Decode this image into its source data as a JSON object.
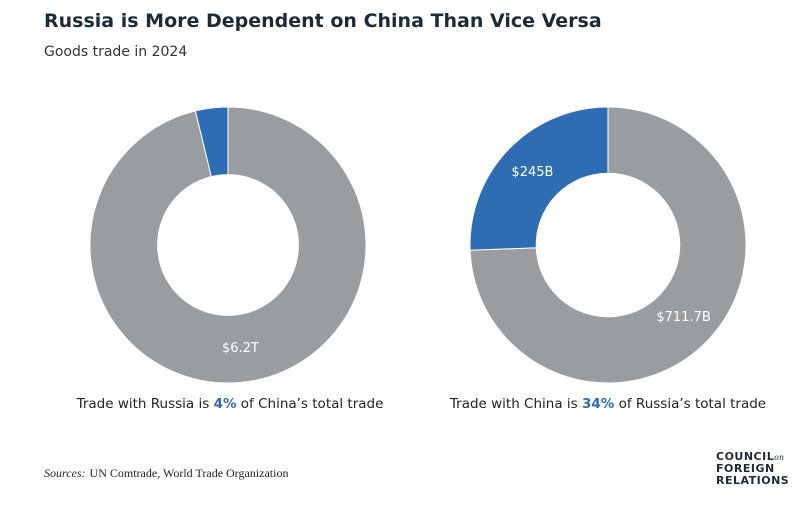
{
  "header": {
    "title": "Russia is More Dependent on China Than Vice Versa",
    "subtitle": "Goods trade in 2024"
  },
  "chart_data": [
    {
      "type": "pie",
      "hole": 0.51,
      "values": [
        6200,
        245
      ],
      "value_labels": [
        "$6.2T",
        null
      ],
      "colors": [
        "#9a9d9f",
        "#2e6db4"
      ],
      "caption": [
        "Trade with Russia is",
        "4%",
        "of China’s total trade"
      ]
    },
    {
      "type": "pie",
      "hole": 0.52,
      "values": [
        711.7,
        245
      ],
      "value_labels": [
        "$711.7B",
        "$245B"
      ],
      "colors": [
        "#9a9d9f",
        "#2e6db4"
      ],
      "caption": [
        "Trade with China is",
        "34%",
        "of Russia’s total trade"
      ]
    }
  ],
  "footer": {
    "sources_label": "Sources:",
    "sources": "UN Comtrade, World Trade Organization",
    "logo": [
      "COUNCIL",
      "on",
      "FOREIGN",
      "RELATIONS"
    ]
  }
}
